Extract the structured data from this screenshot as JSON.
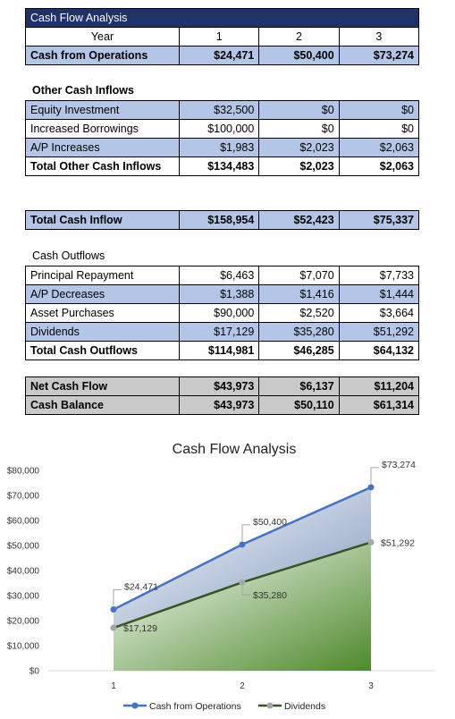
{
  "table": {
    "title": "Cash Flow Analysis",
    "year_label": "Year",
    "years": [
      "1",
      "2",
      "3"
    ],
    "cash_from_operations": {
      "label": "Cash from Operations",
      "values": [
        "$24,471",
        "$50,400",
        "$73,274"
      ]
    },
    "other_inflows_title": "Other Cash Inflows",
    "other_inflows": [
      {
        "label": "Equity Investment",
        "values": [
          "$32,500",
          "$0",
          "$0"
        ]
      },
      {
        "label": "Increased Borrowings",
        "values": [
          "$100,000",
          "$0",
          "$0"
        ]
      },
      {
        "label": "A/P Increases",
        "values": [
          "$1,983",
          "$2,023",
          "$2,063"
        ]
      }
    ],
    "total_other_inflows": {
      "label": "Total Other Cash Inflows",
      "values": [
        "$134,483",
        "$2,023",
        "$2,063"
      ]
    },
    "total_cash_inflow": {
      "label": "Total Cash Inflow",
      "values": [
        "$158,954",
        "$52,423",
        "$75,337"
      ]
    },
    "outflows_title": "Cash Outflows",
    "outflows": [
      {
        "label": "Principal Repayment",
        "values": [
          "$6,463",
          "$7,070",
          "$7,733"
        ]
      },
      {
        "label": "A/P Decreases",
        "values": [
          "$1,388",
          "$1,416",
          "$1,444"
        ]
      },
      {
        "label": "Asset Purchases",
        "values": [
          "$90,000",
          "$2,520",
          "$3,664"
        ]
      },
      {
        "label": "Dividends",
        "values": [
          "$17,129",
          "$35,280",
          "$51,292"
        ]
      }
    ],
    "total_outflows": {
      "label": "Total Cash Outflows",
      "values": [
        "$114,981",
        "$46,285",
        "$64,132"
      ]
    },
    "net_cash_flow": {
      "label": "Net Cash Flow",
      "values": [
        "$43,973",
        "$6,137",
        "$11,204"
      ]
    },
    "cash_balance": {
      "label": "Cash Balance",
      "values": [
        "$43,973",
        "$50,110",
        "$61,314"
      ]
    },
    "colors": {
      "header": "#1f3368",
      "band": "#b4c6e7",
      "summary": "#c9c9c9"
    }
  },
  "chart_data": {
    "type": "area",
    "title": "Cash Flow Analysis",
    "categories": [
      "1",
      "2",
      "3"
    ],
    "ylim": [
      0,
      80000
    ],
    "yticks": [
      "$0",
      "$10,000",
      "$20,000",
      "$30,000",
      "$40,000",
      "$50,000",
      "$60,000",
      "$70,000",
      "$80,000"
    ],
    "series": [
      {
        "name": "Cash from Operations",
        "values": [
          24471,
          50400,
          73274
        ],
        "labels": [
          "$24,471",
          "$50,400",
          "$73,274"
        ],
        "color": "#4472c4"
      },
      {
        "name": "Dividends",
        "values": [
          17129,
          35280,
          51292
        ],
        "labels": [
          "$17,129",
          "$35,280",
          "$51,292"
        ],
        "color": "#375623",
        "marker": "#a5a5a5"
      }
    ],
    "legend_position": "bottom",
    "grid": false
  }
}
